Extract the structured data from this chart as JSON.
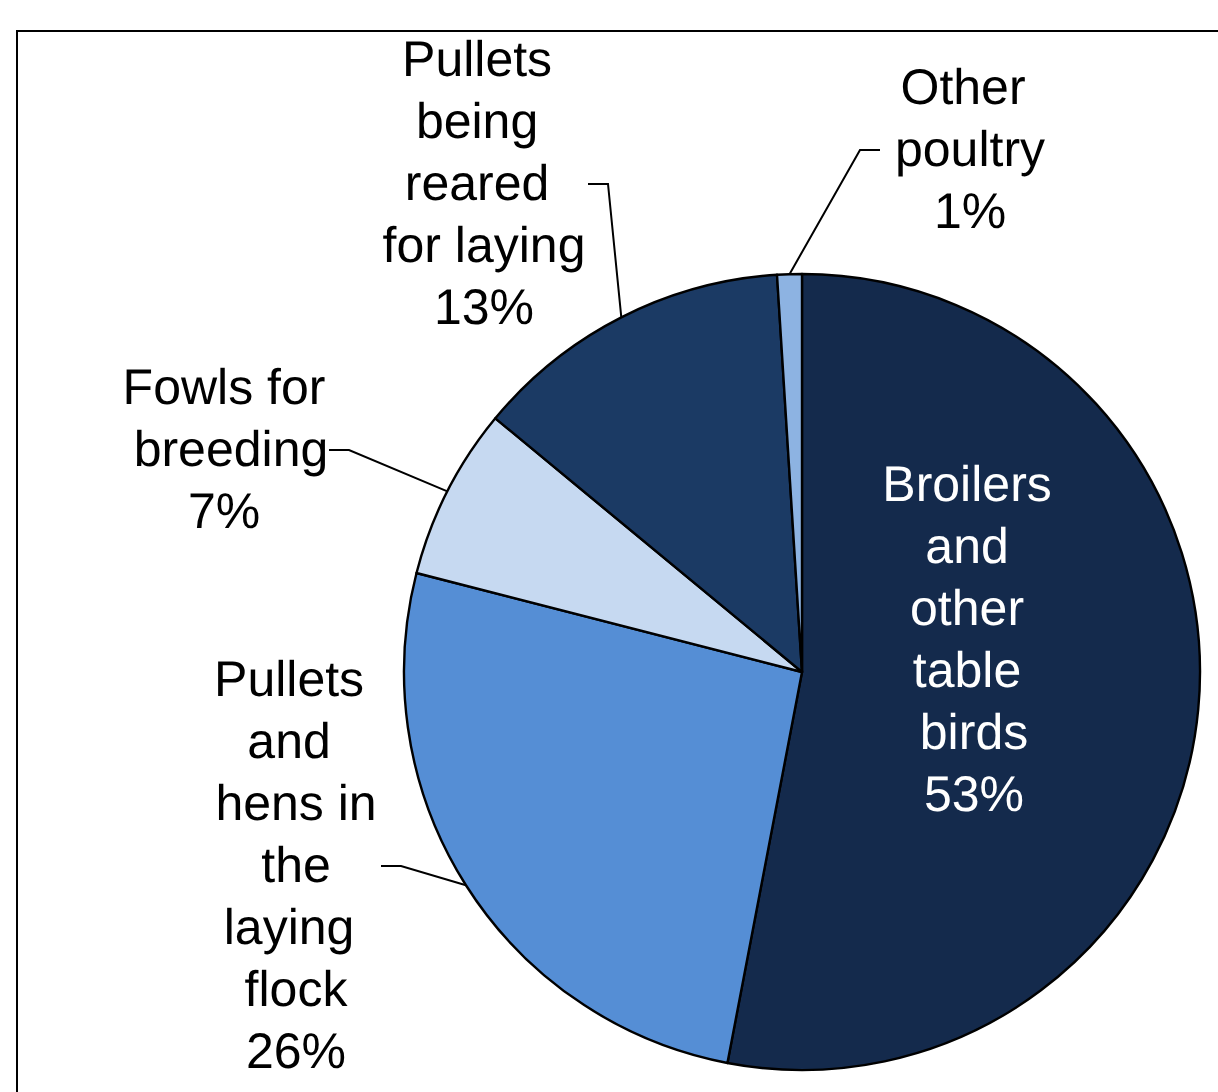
{
  "chart_data": {
    "type": "pie",
    "categories": [
      "Broilers and other table birds",
      "Pullets and hens in the laying flock",
      "Fowls for breeding",
      "Pullets being reared for laying",
      "Other poultry"
    ],
    "values": [
      53,
      26,
      7,
      13,
      1
    ],
    "value_labels": [
      "53%",
      "26%",
      "7%",
      "13%",
      "1%"
    ],
    "colors": [
      "#142a4c",
      "#558ed5",
      "#c6d9f1",
      "#1b3a64",
      "#8db3e2"
    ]
  }
}
